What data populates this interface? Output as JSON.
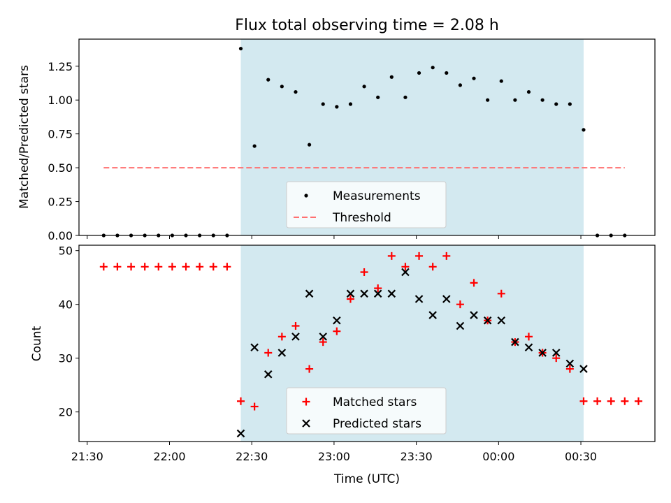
{
  "figure": {
    "title": "Flux total observing time = 2.08 h",
    "xlabel": "Time (UTC)",
    "x_tick_labels": [
      "21:30",
      "22:00",
      "22:30",
      "23:00",
      "23:30",
      "00:00",
      "00:30"
    ]
  },
  "chart_data": [
    {
      "type": "scatter",
      "title": "Flux total observing time = 2.08 h",
      "xlabel": "",
      "ylabel": "Matched/Predicted stars",
      "ylim": [
        0,
        1.45
      ],
      "y_ticks": [
        0.0,
        0.25,
        0.5,
        0.75,
        1.0,
        1.25
      ],
      "y_tick_labels": [
        "0.00",
        "0.25",
        "0.50",
        "0.75",
        "1.00",
        "1.25"
      ],
      "x_unit": "minutes after 21:30 UTC",
      "xlim": [
        -3,
        207
      ],
      "shaded_region": {
        "x_start": 56,
        "x_end": 181,
        "color": "#d3e9f0"
      },
      "grid": false,
      "legend_position": "lower center",
      "series": [
        {
          "name": "Measurements",
          "marker": "dot",
          "color": "#000000",
          "x": [
            6,
            11,
            16,
            21,
            26,
            31,
            36,
            41,
            46,
            51,
            56,
            61,
            66,
            71,
            76,
            81,
            86,
            91,
            96,
            101,
            106,
            111,
            116,
            121,
            126,
            131,
            136,
            141,
            146,
            151,
            156,
            161,
            166,
            171,
            176,
            181,
            186,
            191,
            196
          ],
          "y": [
            0,
            0,
            0,
            0,
            0,
            0,
            0,
            0,
            0,
            0,
            1.38,
            0.66,
            1.15,
            1.1,
            1.06,
            0.67,
            0.97,
            0.95,
            0.97,
            1.1,
            1.02,
            1.17,
            1.02,
            1.2,
            1.24,
            1.2,
            1.11,
            1.16,
            1.0,
            1.14,
            1.0,
            1.06,
            1.0,
            0.97,
            0.97,
            0.78,
            0,
            0,
            0
          ]
        },
        {
          "name": "Threshold",
          "style": "dashed",
          "color": "#ff7070",
          "x": [
            6,
            196
          ],
          "y": [
            0.5,
            0.5
          ]
        }
      ]
    },
    {
      "type": "scatter",
      "xlabel": "Time (UTC)",
      "ylabel": "Count",
      "ylim": [
        14.5,
        51
      ],
      "y_ticks": [
        20,
        30,
        40,
        50
      ],
      "y_tick_labels": [
        "20",
        "30",
        "40",
        "50"
      ],
      "x_unit": "minutes after 21:30 UTC",
      "xlim": [
        -3,
        207
      ],
      "shaded_region": {
        "x_start": 56,
        "x_end": 181,
        "color": "#d3e9f0"
      },
      "grid": false,
      "legend_position": "lower center",
      "series": [
        {
          "name": "Matched stars",
          "marker": "plus",
          "color": "#ff0000",
          "x": [
            6,
            11,
            16,
            21,
            26,
            31,
            36,
            41,
            46,
            51,
            56,
            61,
            66,
            71,
            76,
            81,
            86,
            91,
            96,
            101,
            106,
            111,
            116,
            121,
            126,
            131,
            136,
            141,
            146,
            151,
            156,
            161,
            166,
            171,
            176,
            181,
            186,
            191,
            196,
            201
          ],
          "y": [
            47,
            47,
            47,
            47,
            47,
            47,
            47,
            47,
            47,
            47,
            22,
            21,
            31,
            34,
            36,
            28,
            33,
            35,
            41,
            46,
            43,
            49,
            47,
            49,
            47,
            49,
            40,
            44,
            37,
            42,
            33,
            34,
            31,
            30,
            28,
            22,
            22,
            22,
            22,
            22
          ]
        },
        {
          "name": "Predicted stars",
          "marker": "x",
          "color": "#000000",
          "x": [
            56,
            61,
            66,
            71,
            76,
            81,
            86,
            91,
            96,
            101,
            106,
            111,
            116,
            121,
            126,
            131,
            136,
            141,
            146,
            151,
            156,
            161,
            166,
            171,
            176,
            181
          ],
          "y": [
            16,
            32,
            27,
            31,
            34,
            42,
            34,
            37,
            42,
            42,
            42,
            42,
            46,
            41,
            38,
            41,
            36,
            38,
            37,
            37,
            33,
            32,
            31,
            31,
            29,
            28
          ]
        }
      ]
    }
  ]
}
